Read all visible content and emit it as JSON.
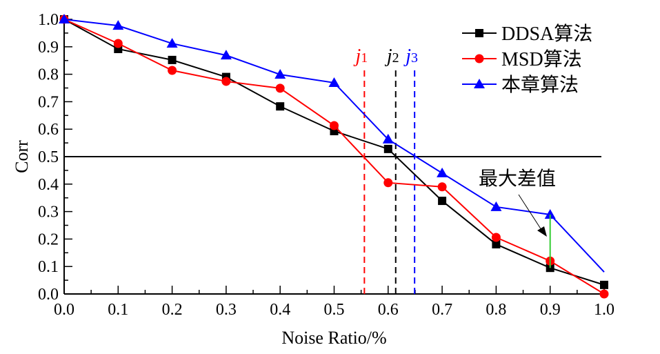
{
  "chart_data": {
    "type": "line",
    "title": "",
    "xlabel": "Noise Ratio/%",
    "ylabel": "Corr",
    "xlim": [
      0,
      1.0
    ],
    "ylim": [
      0,
      1.0
    ],
    "x_ticks": [
      "0.0",
      "0.1",
      "0.2",
      "0.3",
      "0.4",
      "0.5",
      "0.6",
      "0.7",
      "0.8",
      "0.9",
      "1.0"
    ],
    "y_ticks": [
      "0.0",
      "0.1",
      "0.2",
      "0.3",
      "0.4",
      "0.5",
      "0.6",
      "0.7",
      "0.8",
      "0.9",
      "1.0"
    ],
    "x": [
      0.0,
      0.1,
      0.2,
      0.3,
      0.4,
      0.5,
      0.6,
      0.7,
      0.8,
      0.9,
      1.0
    ],
    "series": [
      {
        "name": "DDSA算法",
        "color": "#000000",
        "marker": "square",
        "values": [
          1.0,
          0.892,
          0.852,
          0.79,
          0.683,
          0.593,
          0.528,
          0.339,
          0.181,
          0.095,
          0.033
        ]
      },
      {
        "name": "MSD算法",
        "color": "#ff0000",
        "marker": "circle",
        "values": [
          1.0,
          0.912,
          0.814,
          0.774,
          0.749,
          0.613,
          0.405,
          0.39,
          0.206,
          0.12,
          0.0
        ]
      },
      {
        "name": "本章算法",
        "color": "#0000ff",
        "marker": "triangle",
        "values": [
          1.0,
          0.977,
          0.912,
          0.869,
          0.799,
          0.769,
          0.563,
          0.44,
          0.317,
          0.289,
          0.08
        ]
      }
    ],
    "threshold_line": {
      "y": 0.5,
      "color": "#000000"
    },
    "vertical_markers": [
      {
        "label_main": "j",
        "label_sub": "1",
        "x": 0.556,
        "color": "#ff0000"
      },
      {
        "label_main": "j",
        "label_sub": "2",
        "x": 0.614,
        "color": "#000000"
      },
      {
        "label_main": "j",
        "label_sub": "3",
        "x": 0.649,
        "color": "#0000ff"
      }
    ],
    "max_diff": {
      "label": "最大差值",
      "x": 0.9,
      "y_from": 0.095,
      "y_to": 0.289,
      "color": "#33cc33"
    },
    "legend_position": "top-right",
    "grid": false
  }
}
